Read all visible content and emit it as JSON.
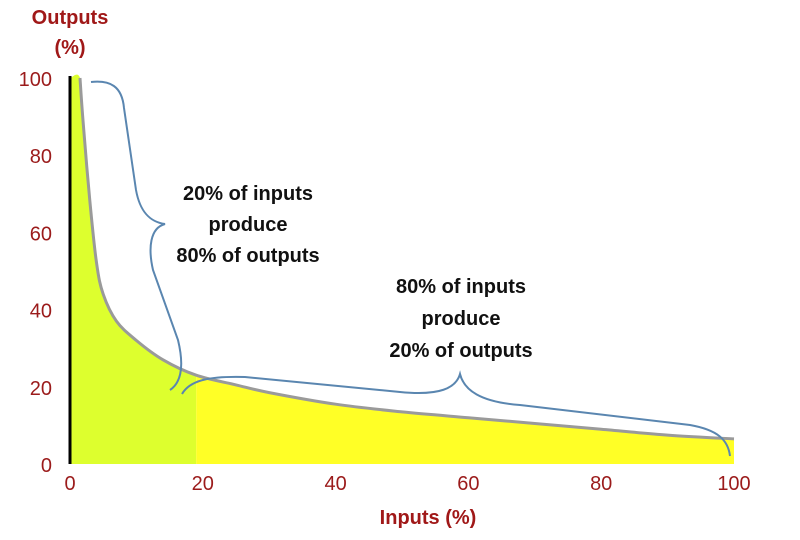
{
  "chart_data": {
    "type": "area",
    "xlabel": "Inputs (%)",
    "ylabel_lines": [
      "Outputs",
      "(%)"
    ],
    "xlim": [
      0,
      100
    ],
    "ylim": [
      0,
      100
    ],
    "x_ticks": [
      0,
      20,
      40,
      60,
      80,
      100
    ],
    "y_ticks": [
      0,
      20,
      40,
      60,
      80,
      100
    ],
    "grid": false,
    "series": [
      {
        "x": [
          1.5,
          2,
          3,
          4,
          5,
          7,
          10,
          14,
          19,
          25,
          30,
          40,
          50,
          60,
          70,
          80,
          90,
          100
        ],
        "values": [
          100,
          88,
          68,
          52,
          44,
          37,
          32,
          27,
          23,
          20.5,
          18.5,
          15.5,
          13.5,
          12,
          10.5,
          9,
          7.5,
          6.5
        ]
      }
    ],
    "fill_split_x": 19,
    "colors": {
      "curve": "#9a9a9a",
      "fill_left": "#ddff2e",
      "fill_right": "#ffff26",
      "y_axis_line": "#000000",
      "tick_text": "#9b1b1b",
      "axis_title": "#a01818",
      "brace": "#5a86b0",
      "annotation_text": "#111111"
    },
    "annotations": [
      {
        "lines": [
          "20% of inputs",
          "produce",
          "80% of outputs"
        ]
      },
      {
        "lines": [
          "80% of inputs",
          "produce",
          "20% of outputs"
        ]
      }
    ]
  }
}
